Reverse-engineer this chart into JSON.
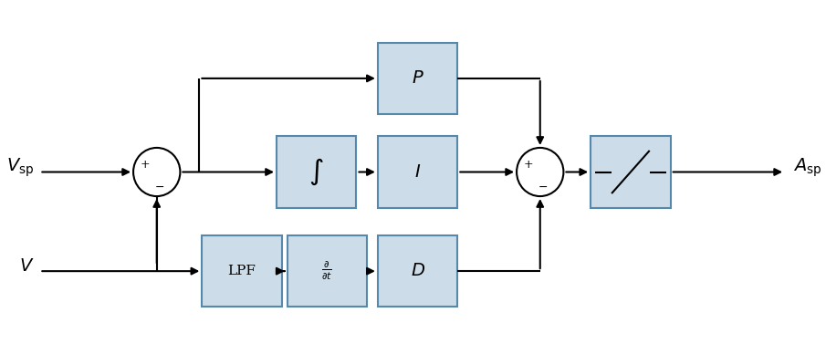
{
  "box_color": "#ccdce8",
  "box_edge": "#5588aa",
  "line_color": "#000000",
  "bg_color": "#ffffff",
  "figsize": [
    9.05,
    3.77
  ],
  "dpi": 100,
  "y_top": 2.7,
  "y_mid": 1.85,
  "y_bot": 0.95,
  "x_in": 0.3,
  "x_sum1": 1.4,
  "x_int": 2.9,
  "x_I": 3.85,
  "x_P": 3.85,
  "x_lpf": 2.2,
  "x_ddt": 3.0,
  "x_D": 3.85,
  "x_sum2": 5.0,
  "x_sat": 5.85,
  "x_out": 7.0,
  "bw": 0.75,
  "bh": 0.65,
  "r_sum": 0.22,
  "xmin": 0.0,
  "xmax": 7.5,
  "ymin": 0.3,
  "ymax": 3.4
}
